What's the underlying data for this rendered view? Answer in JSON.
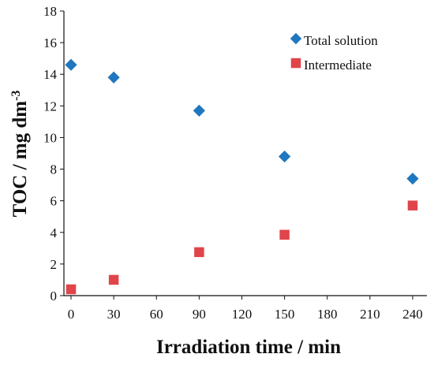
{
  "chart_data": {
    "type": "scatter",
    "xlabel": "Irradiation time / min",
    "ylabel_main": "TOC / mg dm",
    "ylabel_superscript": "-3",
    "xlim": [
      -5,
      250
    ],
    "ylim": [
      0,
      18
    ],
    "xticks": [
      0,
      30,
      60,
      90,
      120,
      150,
      180,
      210,
      240
    ],
    "yticks": [
      0,
      2,
      4,
      6,
      8,
      10,
      12,
      14,
      16,
      18
    ],
    "legend_position": "top-right",
    "grid": false,
    "series": [
      {
        "name": "Total solution",
        "marker": "diamond",
        "color": "#1f77bf",
        "x": [
          0,
          30,
          90,
          150,
          240
        ],
        "y": [
          14.6,
          13.8,
          11.7,
          8.8,
          7.4
        ]
      },
      {
        "name": "Intermediate",
        "marker": "square",
        "color": "#e0454a",
        "x": [
          0,
          30,
          90,
          150,
          240
        ],
        "y": [
          0.4,
          1.0,
          2.75,
          3.85,
          5.7
        ]
      }
    ]
  }
}
